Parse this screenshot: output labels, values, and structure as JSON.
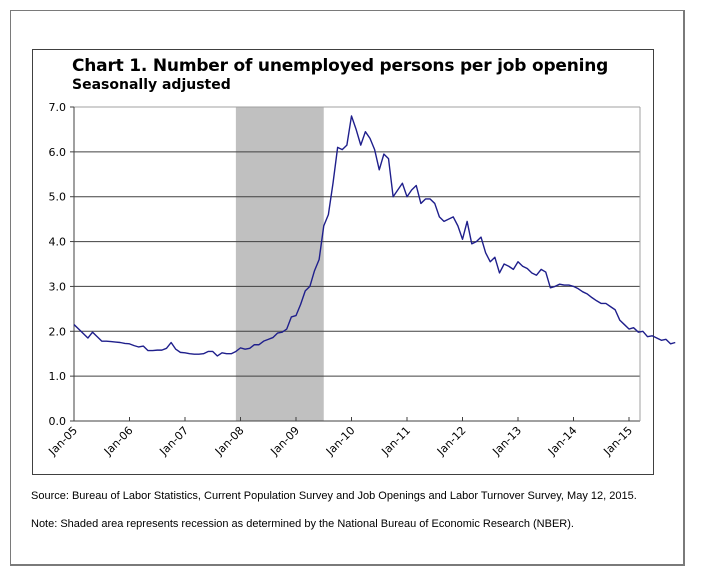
{
  "chart_data": {
    "type": "line",
    "title": "Chart 1. Number of unemployed persons per job opening",
    "subtitle": "Seasonally adjusted",
    "xlabel": "",
    "ylabel": "",
    "ylim": [
      0,
      7
    ],
    "yticks": [
      "0.0",
      "1.0",
      "2.0",
      "3.0",
      "4.0",
      "5.0",
      "6.0",
      "7.0"
    ],
    "xticks": [
      "Jan-05",
      "Jan-06",
      "Jan-07",
      "Jan-08",
      "Jan-09",
      "Jan-10",
      "Jan-11",
      "Jan-12",
      "Jan-13",
      "Jan-14",
      "Jan-15"
    ],
    "grid": "horizontal",
    "start_month": "Jan-05",
    "recession": {
      "start_month_index": 35,
      "end_month_index": 54,
      "color": "#c0c0c0"
    },
    "line_color": "#1f1f8c",
    "series": [
      {
        "name": "Unemployed persons per job opening",
        "values": [
          2.15,
          2.05,
          1.95,
          1.85,
          1.98,
          1.88,
          1.78,
          1.78,
          1.77,
          1.76,
          1.75,
          1.73,
          1.72,
          1.68,
          1.65,
          1.67,
          1.57,
          1.57,
          1.58,
          1.58,
          1.62,
          1.75,
          1.6,
          1.53,
          1.52,
          1.5,
          1.49,
          1.49,
          1.5,
          1.55,
          1.55,
          1.45,
          1.52,
          1.5,
          1.5,
          1.55,
          1.63,
          1.6,
          1.62,
          1.7,
          1.7,
          1.78,
          1.82,
          1.86,
          1.96,
          1.98,
          2.05,
          2.32,
          2.35,
          2.6,
          2.9,
          3.0,
          3.35,
          3.6,
          4.35,
          4.6,
          5.3,
          6.1,
          6.05,
          6.15,
          6.8,
          6.5,
          6.15,
          6.45,
          6.3,
          6.05,
          5.6,
          5.95,
          5.85,
          5.0,
          5.15,
          5.3,
          5.0,
          5.15,
          5.25,
          4.85,
          4.95,
          4.95,
          4.85,
          4.55,
          4.45,
          4.5,
          4.55,
          4.35,
          4.05,
          4.45,
          3.95,
          4.0,
          4.1,
          3.75,
          3.55,
          3.65,
          3.3,
          3.5,
          3.45,
          3.38,
          3.55,
          3.45,
          3.4,
          3.3,
          3.25,
          3.38,
          3.32,
          2.97,
          3.0,
          3.05,
          3.03,
          3.03,
          3.0,
          2.95,
          2.88,
          2.83,
          2.75,
          2.68,
          2.62,
          2.62,
          2.55,
          2.48,
          2.25,
          2.15,
          2.05,
          2.08,
          1.98,
          2.0,
          1.88,
          1.9,
          1.85,
          1.8,
          1.82,
          1.72,
          1.75
        ]
      }
    ]
  },
  "notes": {
    "source": "Source: Bureau of Labor Statistics, Current Population Survey and Job Openings and Labor Turnover Survey, May 12, 2015.",
    "note": "Note: Shaded area represents recession as determined by the National Bureau of Economic Research (NBER)."
  }
}
